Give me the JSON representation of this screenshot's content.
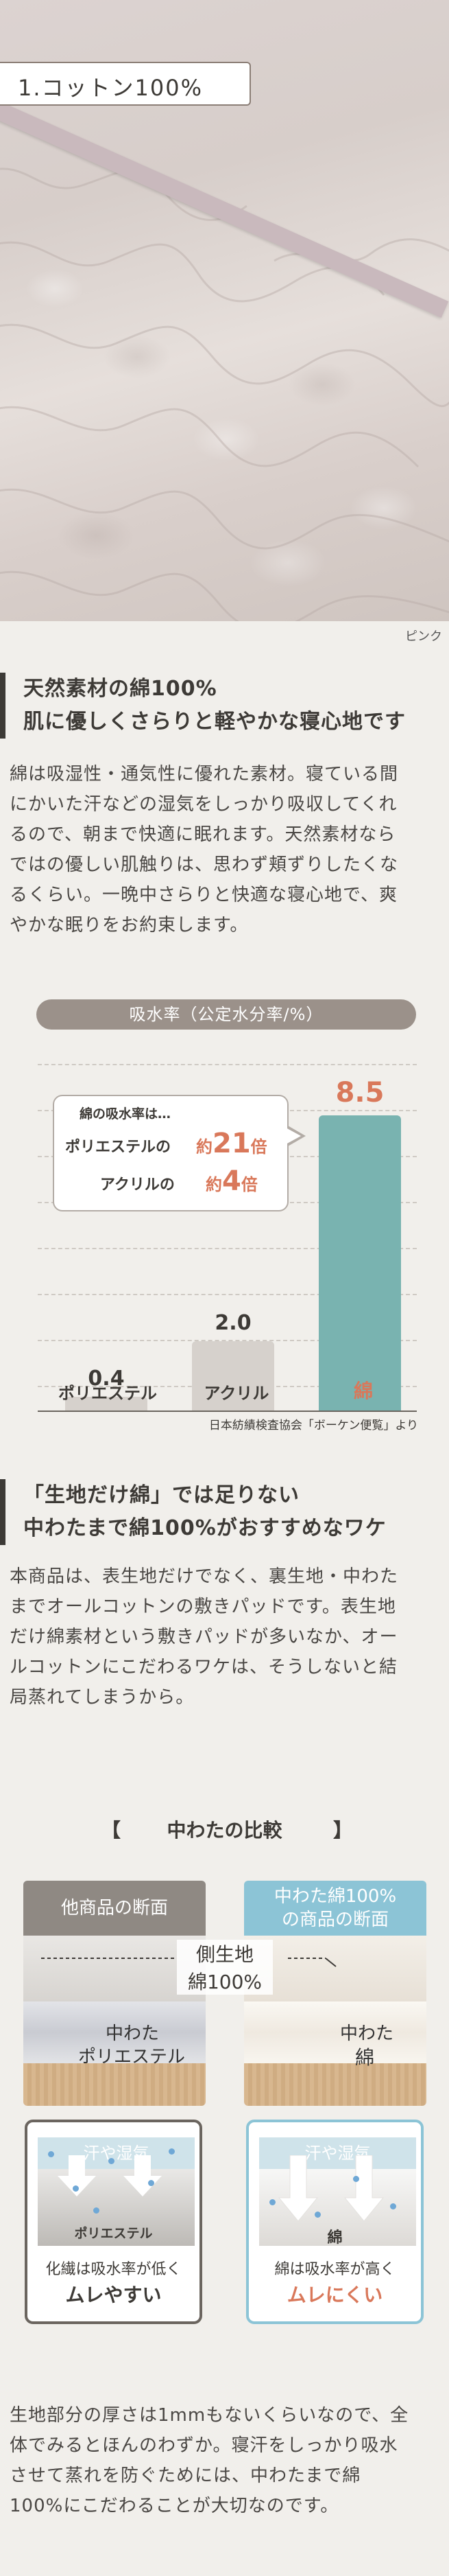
{
  "hero": {
    "title": "1.コットン100%",
    "color_caption": "ピンク"
  },
  "section1": {
    "heading_line1": "天然素材の綿100%",
    "heading_line2": "肌に優しくさらりと軽やかな寝心地です",
    "body_lines": [
      "綿は吸湿性・通気性に優れた素材。寝ている間",
      "にかいた汗などの湿気をしっかり吸収してくれ",
      "るので、朝まで快適に眠れます。天然素材なら",
      "ではの優しい肌触りは、思わず頬ずりしたくな",
      "るくらい。一晩中さらりと快適な寝心地で、爽",
      "やかな眠りをお約束します。"
    ]
  },
  "chart_data": {
    "type": "bar",
    "title": "吸水率（公定水分率/%）",
    "categories": [
      "ポリエステル",
      "アクリル",
      "綿"
    ],
    "values": [
      0.4,
      2.0,
      8.5
    ],
    "value_labels": [
      "0.4",
      "2.0",
      "8.5"
    ],
    "ylim": [
      0,
      9
    ],
    "grid": true,
    "colors": [
      "#d6d1cc",
      "#d6d1cc",
      "#79b3b0"
    ],
    "highlight_color": "#d9785a",
    "source": "日本紡績検査協会「ボーケン便覧」より",
    "callout": {
      "line1": "綿の吸水率は…",
      "line2_left": "ポリエステルの",
      "line2_prefix": "約",
      "line2_num": "21",
      "line2_unit": "倍",
      "line3_left": "アクリルの",
      "line3_prefix": "約",
      "line3_num": "4",
      "line3_unit": "倍"
    }
  },
  "section2": {
    "heading_line1": "「生地だけ綿」では足りない",
    "heading_line2": "中わたまで綿100%がおすすめなワケ",
    "body_lines": [
      "本商品は、表生地だけでなく、裏生地・中わた",
      "までオールコットンの敷きパッドです。表生地",
      "だけ綿素材という敷きパッドが多いなか、オー",
      "ルコットンにこだわるワケは、そうしないと結",
      "局蒸れてしまうから。"
    ]
  },
  "comparison": {
    "title_left": "【",
    "title": "中わたの比較",
    "title_right": "】",
    "left_card": {
      "header": "他商品の断面",
      "inner_label_line1": "中わた",
      "inner_label_line2": "ポリエステル",
      "color": "#8f8983"
    },
    "right_card": {
      "header_line1": "中わた綿100%",
      "header_line2": "の商品の断面",
      "inner_label_line1": "中わた",
      "inner_label_line2": "綿",
      "color": "#8cc4d6"
    },
    "side_label_line1": "側生地",
    "side_label_line2": "綿100%",
    "left_box": {
      "top_label": "汗や湿気",
      "material": "ポリエステル",
      "note": "化繊は吸水率が低く",
      "result": "ムレやすい",
      "border": "#6b655f"
    },
    "right_box": {
      "top_label": "汗や湿気",
      "material": "綿",
      "note": "綿は吸水率が高く",
      "result": "ムレにくい",
      "border": "#8cc4d6",
      "result_color": "#d9785a"
    }
  },
  "footer": {
    "lines": [
      "生地部分の厚さは1mmもないくらいなので、全",
      "体でみるとほんのわずか。寝汗をしっかり吸水",
      "させて蒸れを防ぐためには、中わたまで綿",
      "100%にこだわることが大切なのです。"
    ]
  }
}
